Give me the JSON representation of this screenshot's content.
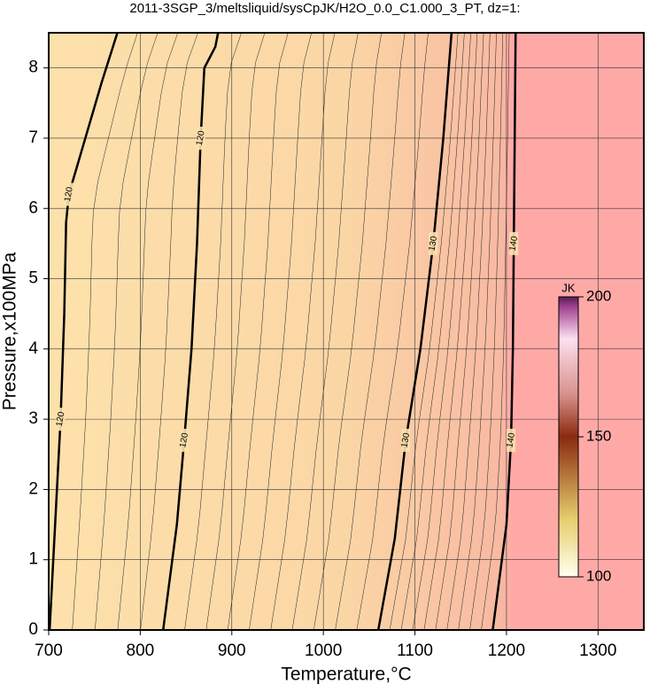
{
  "chart_data": {
    "type": "contour",
    "title": "2011-3SGP_3/meltsliquid/sysCpJK/H2O_0.0_C1.000_3_PT, dz=1:",
    "xlabel": "Temperature,°C",
    "ylabel": "Pressure,x100MPa",
    "xlim": [
      700,
      1350
    ],
    "ylim": [
      0,
      8.5
    ],
    "xticks": [
      700,
      800,
      900,
      1000,
      1100,
      1200,
      1300
    ],
    "yticks": [
      0,
      1,
      2,
      3,
      4,
      5,
      6,
      7,
      8
    ],
    "grid": true,
    "contours": [
      {
        "level": 120,
        "x": [
          701,
          707,
          713,
          717,
          719,
          722,
          740,
          758,
          775
        ],
        "y": [
          0,
          1.5,
          3,
          4.5,
          5.8,
          6.2,
          7,
          7.8,
          8.5
        ]
      },
      {
        "level": 120,
        "x": [
          825,
          840,
          848,
          856,
          862,
          866,
          870,
          882,
          885
        ],
        "y": [
          0,
          1.5,
          2.7,
          4,
          5.5,
          7,
          8,
          8.3,
          8.5
        ]
      },
      {
        "level": 130,
        "x": [
          1060,
          1078,
          1090,
          1106,
          1120,
          1131,
          1140
        ],
        "y": [
          0,
          1.3,
          2.7,
          4,
          5.5,
          7,
          8.5
        ]
      },
      {
        "level": 140,
        "x": [
          1185,
          1200,
          1205,
          1207,
          1208,
          1209,
          1210
        ],
        "y": [
          0,
          1.5,
          2.7,
          4,
          5.5,
          7,
          8.5
        ]
      }
    ],
    "colorbar": {
      "label": "JK",
      "lim": [
        100,
        200
      ],
      "ticks": [
        100,
        150,
        200
      ]
    }
  }
}
